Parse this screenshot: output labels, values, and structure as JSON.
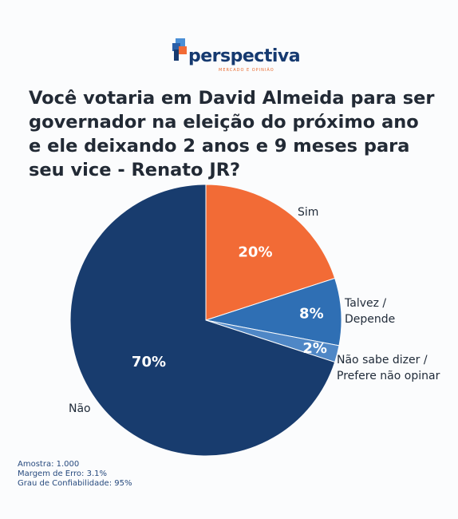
{
  "logo": {
    "name": "perspectiva",
    "tagline": "MERCADO E OPINIÃO"
  },
  "colors": {
    "sim": "#f26b36",
    "talvez": "#2f6fb4",
    "nao_sabe": "#4f87c6",
    "nao": "#183c6e"
  },
  "chart_data": {
    "type": "pie",
    "title": "Você votaria em David Almeida para ser governador na eleição do próximo ano e ele deixando 2 anos e 9 meses para seu vice - Renato JR?",
    "slices": [
      {
        "label": "Sim",
        "value": 20,
        "value_label": "20%"
      },
      {
        "label": "Talvez / Depende",
        "value": 8,
        "value_label": "8%"
      },
      {
        "label": "Não sabe dizer / Prefere não opinar",
        "value": 2,
        "value_label": "2%"
      },
      {
        "label": "Não",
        "value": 70,
        "value_label": "70%"
      }
    ]
  },
  "notes": {
    "amostra": "Amostra: 1.000",
    "margem": "Margem de Erro: 3.1%",
    "grau": "Grau de Confiabilidade: 95%"
  }
}
